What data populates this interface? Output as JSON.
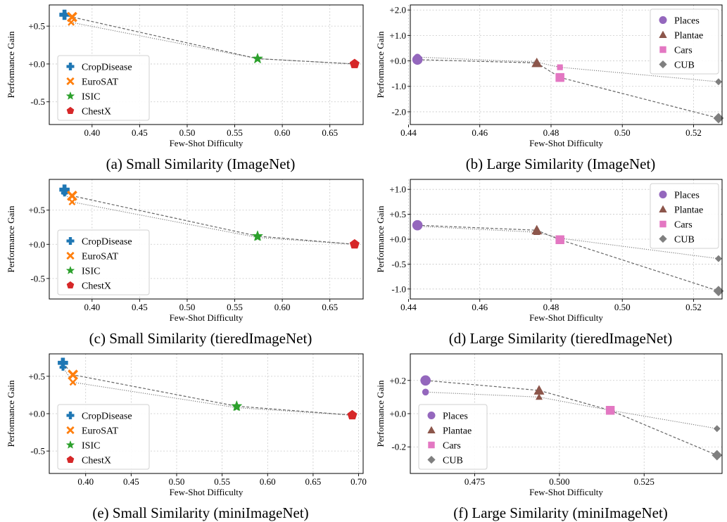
{
  "chart_data": [
    {
      "type": "scatter",
      "caption": "(a) Small Similarity (ImageNet)",
      "xlabel": "Few-Shot Difficulty",
      "ylabel": "Performance Gain",
      "xlim": [
        0.355,
        0.685
      ],
      "ylim": [
        -0.8,
        0.78
      ],
      "xticks": [
        0.4,
        0.45,
        0.5,
        0.55,
        0.6,
        0.65
      ],
      "xtick_labels": [
        "0.40",
        "0.45",
        "0.50",
        "0.55",
        "0.60",
        "0.65"
      ],
      "yticks": [
        0.5,
        0.0,
        -0.5
      ],
      "ytick_labels": [
        "+0.5",
        "+0.0",
        "-0.5"
      ],
      "grid": true,
      "legend_position": "lower-left",
      "series": [
        {
          "name": "CropDisease",
          "color": "#1f77b4",
          "marker": "plus",
          "points": [
            {
              "x": 0.371,
              "y": 0.65,
              "large": true
            }
          ]
        },
        {
          "name": "EuroSAT",
          "color": "#ff7f0e",
          "marker": "x",
          "points": [
            {
              "x": 0.379,
              "y": 0.62,
              "large": true
            },
            {
              "x": 0.378,
              "y": 0.55,
              "large": false
            }
          ]
        },
        {
          "name": "ISIC",
          "color": "#2ca02c",
          "marker": "star",
          "points": [
            {
              "x": 0.574,
              "y": 0.07,
              "large": true
            },
            {
              "x": 0.574,
              "y": 0.07,
              "large": false
            }
          ]
        },
        {
          "name": "ChestX",
          "color": "#d62728",
          "marker": "pentagon",
          "points": [
            {
              "x": 0.676,
              "y": 0.0,
              "large": true
            },
            {
              "x": 0.676,
              "y": 0.0,
              "large": false
            }
          ]
        }
      ],
      "dashed_line": [
        [
          0.371,
          0.65
        ],
        [
          0.379,
          0.62
        ],
        [
          0.574,
          0.07
        ],
        [
          0.676,
          0.0
        ]
      ],
      "dotted_line": [
        [
          0.378,
          0.55
        ],
        [
          0.574,
          0.07
        ],
        [
          0.676,
          0.0
        ]
      ]
    },
    {
      "type": "scatter",
      "caption": "(b) Large Similarity (ImageNet)",
      "xlabel": "Few-Shot Difficulty",
      "ylabel": "Performance Gain",
      "xlim": [
        0.4405,
        0.528
      ],
      "ylim": [
        -2.5,
        2.2
      ],
      "xticks": [
        0.44,
        0.46,
        0.48,
        0.5,
        0.52
      ],
      "xtick_labels": [
        "0.44",
        "0.46",
        "0.48",
        "0.50",
        "0.52"
      ],
      "yticks": [
        2.0,
        1.0,
        0.0,
        -1.0,
        -2.0
      ],
      "ytick_labels": [
        "+2.0",
        "+1.0",
        "+0.0",
        "-1.0",
        "-2.0"
      ],
      "grid": true,
      "legend_position": "top-right",
      "series": [
        {
          "name": "Places",
          "color": "#9467bd",
          "marker": "circle",
          "points": [
            {
              "x": 0.4425,
              "y": 0.05,
              "large": true
            },
            {
              "x": 0.4425,
              "y": 0.15,
              "large": false
            }
          ]
        },
        {
          "name": "Plantae",
          "color": "#8c564b",
          "marker": "triangle",
          "points": [
            {
              "x": 0.476,
              "y": -0.08,
              "large": true
            },
            {
              "x": 0.476,
              "y": -0.05,
              "large": false
            }
          ]
        },
        {
          "name": "Cars",
          "color": "#e377c2",
          "marker": "square",
          "points": [
            {
              "x": 0.4825,
              "y": -0.65,
              "large": true
            },
            {
              "x": 0.4825,
              "y": -0.25,
              "large": false
            }
          ]
        },
        {
          "name": "CUB",
          "color": "#7f7f7f",
          "marker": "diamond",
          "points": [
            {
              "x": 0.527,
              "y": -2.25,
              "large": true
            },
            {
              "x": 0.527,
              "y": -0.82,
              "large": false
            }
          ]
        }
      ],
      "dashed_line": [
        [
          0.4425,
          0.05
        ],
        [
          0.476,
          -0.08
        ],
        [
          0.4825,
          -0.65
        ],
        [
          0.527,
          -2.25
        ]
      ],
      "dotted_line": [
        [
          0.4425,
          0.15
        ],
        [
          0.476,
          -0.05
        ],
        [
          0.4825,
          -0.25
        ],
        [
          0.527,
          -0.82
        ]
      ]
    },
    {
      "type": "scatter",
      "caption": "(c) Small Similarity (tieredImageNet)",
      "xlabel": "Few-Shot Difficulty",
      "ylabel": "Performance Gain",
      "xlim": [
        0.355,
        0.685
      ],
      "ylim": [
        -0.8,
        0.95
      ],
      "xticks": [
        0.4,
        0.45,
        0.5,
        0.55,
        0.6,
        0.65
      ],
      "xtick_labels": [
        "0.40",
        "0.45",
        "0.50",
        "0.55",
        "0.60",
        "0.65"
      ],
      "yticks": [
        0.5,
        0.0,
        -0.5
      ],
      "ytick_labels": [
        "+0.5",
        "+0.0",
        "-0.5"
      ],
      "grid": true,
      "legend_position": "lower-left",
      "series": [
        {
          "name": "CropDisease",
          "color": "#1f77b4",
          "marker": "plus",
          "points": [
            {
              "x": 0.371,
              "y": 0.8,
              "large": true
            },
            {
              "x": 0.371,
              "y": 0.75,
              "large": false
            }
          ]
        },
        {
          "name": "EuroSAT",
          "color": "#ff7f0e",
          "marker": "x",
          "points": [
            {
              "x": 0.379,
              "y": 0.71,
              "large": true
            },
            {
              "x": 0.379,
              "y": 0.62,
              "large": false
            }
          ]
        },
        {
          "name": "ISIC",
          "color": "#2ca02c",
          "marker": "star",
          "points": [
            {
              "x": 0.574,
              "y": 0.12,
              "large": true
            },
            {
              "x": 0.574,
              "y": 0.1,
              "large": false
            }
          ]
        },
        {
          "name": "ChestX",
          "color": "#d62728",
          "marker": "pentagon",
          "points": [
            {
              "x": 0.676,
              "y": 0.0,
              "large": true
            },
            {
              "x": 0.676,
              "y": 0.0,
              "large": false
            }
          ]
        }
      ],
      "dashed_line": [
        [
          0.371,
          0.8
        ],
        [
          0.379,
          0.71
        ],
        [
          0.574,
          0.12
        ],
        [
          0.676,
          0.0
        ]
      ],
      "dotted_line": [
        [
          0.371,
          0.75
        ],
        [
          0.379,
          0.62
        ],
        [
          0.574,
          0.1
        ],
        [
          0.676,
          0.0
        ]
      ]
    },
    {
      "type": "scatter",
      "caption": "(d) Large Similarity (tieredImageNet)",
      "xlabel": "Few-Shot Difficulty",
      "ylabel": "Performance Gain",
      "xlim": [
        0.4405,
        0.528
      ],
      "ylim": [
        -1.2,
        1.2
      ],
      "xticks": [
        0.44,
        0.46,
        0.48,
        0.5,
        0.52
      ],
      "xtick_labels": [
        "0.44",
        "0.46",
        "0.48",
        "0.50",
        "0.52"
      ],
      "yticks": [
        1.0,
        0.5,
        0.0,
        -0.5,
        -1.0
      ],
      "ytick_labels": [
        "+1.0",
        "+0.5",
        "+0.0",
        "-0.5",
        "-1.0"
      ],
      "grid": true,
      "legend_position": "top-right",
      "series": [
        {
          "name": "Places",
          "color": "#9467bd",
          "marker": "circle",
          "points": [
            {
              "x": 0.4425,
              "y": 0.28,
              "large": true
            },
            {
              "x": 0.4425,
              "y": 0.26,
              "large": false
            }
          ]
        },
        {
          "name": "Plantae",
          "color": "#8c564b",
          "marker": "triangle",
          "points": [
            {
              "x": 0.476,
              "y": 0.18,
              "large": true
            },
            {
              "x": 0.476,
              "y": 0.14,
              "large": false
            }
          ]
        },
        {
          "name": "Cars",
          "color": "#e377c2",
          "marker": "square",
          "points": [
            {
              "x": 0.4825,
              "y": -0.01,
              "large": true
            },
            {
              "x": 0.4825,
              "y": 0.02,
              "large": false
            }
          ]
        },
        {
          "name": "CUB",
          "color": "#7f7f7f",
          "marker": "diamond",
          "points": [
            {
              "x": 0.527,
              "y": -1.04,
              "large": true
            },
            {
              "x": 0.527,
              "y": -0.39,
              "large": false
            }
          ]
        }
      ],
      "dashed_line": [
        [
          0.4425,
          0.28
        ],
        [
          0.476,
          0.18
        ],
        [
          0.4825,
          -0.01
        ],
        [
          0.527,
          -1.04
        ]
      ],
      "dotted_line": [
        [
          0.4425,
          0.26
        ],
        [
          0.476,
          0.14
        ],
        [
          0.4825,
          0.02
        ],
        [
          0.527,
          -0.39
        ]
      ]
    },
    {
      "type": "scatter",
      "caption": "(e) Small Similarity (miniImageNet)",
      "xlabel": "Few-Shot Difficulty",
      "ylabel": "Performance Gain",
      "xlim": [
        0.36,
        0.705
      ],
      "ylim": [
        -0.8,
        0.8
      ],
      "xticks": [
        0.4,
        0.45,
        0.5,
        0.55,
        0.6,
        0.65,
        0.7
      ],
      "xtick_labels": [
        "0.40",
        "0.45",
        "0.50",
        "0.55",
        "0.60",
        "0.65",
        "0.70"
      ],
      "yticks": [
        0.5,
        0.0,
        -0.5
      ],
      "ytick_labels": [
        "+0.5",
        "+0.0",
        "-0.5"
      ],
      "grid": true,
      "legend_position": "lower-left",
      "series": [
        {
          "name": "CropDisease",
          "color": "#1f77b4",
          "marker": "plus",
          "points": [
            {
              "x": 0.375,
              "y": 0.68,
              "large": true
            },
            {
              "x": 0.375,
              "y": 0.62,
              "large": false
            }
          ]
        },
        {
          "name": "EuroSAT",
          "color": "#ff7f0e",
          "marker": "x",
          "points": [
            {
              "x": 0.386,
              "y": 0.52,
              "large": true
            },
            {
              "x": 0.386,
              "y": 0.42,
              "large": false
            }
          ]
        },
        {
          "name": "ISIC",
          "color": "#2ca02c",
          "marker": "star",
          "points": [
            {
              "x": 0.566,
              "y": 0.1,
              "large": true
            },
            {
              "x": 0.566,
              "y": 0.08,
              "large": false
            }
          ]
        },
        {
          "name": "ChestX",
          "color": "#d62728",
          "marker": "pentagon",
          "points": [
            {
              "x": 0.693,
              "y": -0.02,
              "large": true
            },
            {
              "x": 0.693,
              "y": -0.02,
              "large": false
            }
          ]
        }
      ],
      "dashed_line": [
        [
          0.375,
          0.68
        ],
        [
          0.386,
          0.52
        ],
        [
          0.566,
          0.1
        ],
        [
          0.693,
          -0.02
        ]
      ],
      "dotted_line": [
        [
          0.375,
          0.62
        ],
        [
          0.386,
          0.42
        ],
        [
          0.566,
          0.08
        ],
        [
          0.693,
          -0.02
        ]
      ]
    },
    {
      "type": "scatter",
      "caption": "(f) Large Similarity (miniImageNet)",
      "xlabel": "Few-Shot Difficulty",
      "ylabel": "Performance Gain",
      "xlim": [
        0.456,
        0.548
      ],
      "ylim": [
        -0.36,
        0.36
      ],
      "xticks": [
        0.475,
        0.5,
        0.525
      ],
      "xtick_labels": [
        "0.475",
        "0.500",
        "0.525"
      ],
      "yticks": [
        0.2,
        0.0,
        -0.2
      ],
      "ytick_labels": [
        "+0.2",
        "+0.0",
        "-0.2"
      ],
      "grid": true,
      "legend_position": "lower-left",
      "series": [
        {
          "name": "Places",
          "color": "#9467bd",
          "marker": "circle",
          "points": [
            {
              "x": 0.4605,
              "y": 0.2,
              "large": true
            },
            {
              "x": 0.4605,
              "y": 0.13,
              "large": false
            }
          ]
        },
        {
          "name": "Plantae",
          "color": "#8c564b",
          "marker": "triangle",
          "points": [
            {
              "x": 0.494,
              "y": 0.14,
              "large": true
            },
            {
              "x": 0.494,
              "y": 0.1,
              "large": false
            }
          ]
        },
        {
          "name": "Cars",
          "color": "#e377c2",
          "marker": "square",
          "points": [
            {
              "x": 0.515,
              "y": 0.02,
              "large": true
            },
            {
              "x": 0.515,
              "y": 0.02,
              "large": false
            }
          ]
        },
        {
          "name": "CUB",
          "color": "#7f7f7f",
          "marker": "diamond",
          "points": [
            {
              "x": 0.5465,
              "y": -0.25,
              "large": true
            },
            {
              "x": 0.5465,
              "y": -0.09,
              "large": false
            }
          ]
        }
      ],
      "dashed_line": [
        [
          0.4605,
          0.2
        ],
        [
          0.494,
          0.14
        ],
        [
          0.515,
          0.02
        ],
        [
          0.5465,
          -0.25
        ]
      ],
      "dotted_line": [
        [
          0.4605,
          0.13
        ],
        [
          0.494,
          0.1
        ],
        [
          0.515,
          0.02
        ],
        [
          0.5465,
          -0.09
        ]
      ]
    }
  ]
}
